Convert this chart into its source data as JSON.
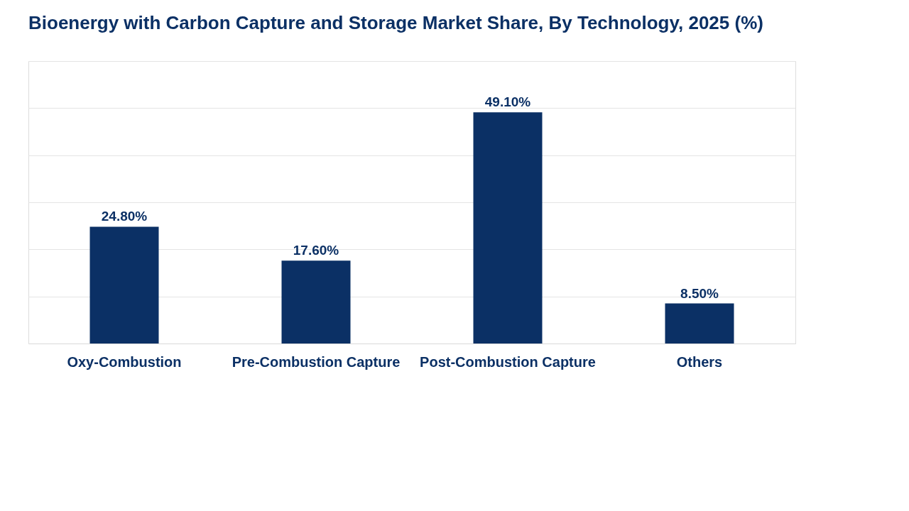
{
  "chart_data": {
    "type": "bar",
    "title": "Bioenergy with Carbon Capture and Storage Market Share, By Technology, 2025 (%)",
    "categories": [
      "Oxy-Combustion",
      "Pre-Combustion Capture",
      "Post-Combustion Capture",
      "Others"
    ],
    "values": [
      24.8,
      17.6,
      49.1,
      8.5
    ],
    "value_labels": [
      "24.80%",
      "17.60%",
      "49.10%",
      "8.50%"
    ],
    "color": "#0b3065",
    "ylim": [
      0,
      60
    ],
    "yticks": [
      {
        "value": 0,
        "label": null
      },
      {
        "value": 10,
        "label": null
      },
      {
        "value": 20,
        "label": null
      },
      {
        "value": 30,
        "label": null
      },
      {
        "value": 40,
        "label": null
      },
      {
        "value": 50,
        "label": null
      },
      {
        "value": 60,
        "label": null
      }
    ],
    "grid": "y",
    "tick_labels": "x"
  }
}
